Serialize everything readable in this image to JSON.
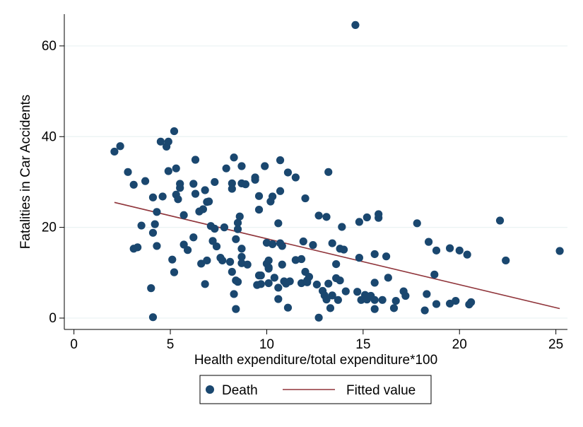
{
  "chart_data": {
    "type": "scatter",
    "xlabel": "Health expenditure/total expenditure*100",
    "ylabel": "Fatalities in Car Accidents",
    "xlim": [
      -0.5,
      25.6
    ],
    "ylim": [
      -2.5,
      67
    ],
    "x_ticks": [
      0,
      5,
      10,
      15,
      20,
      25
    ],
    "y_ticks": [
      0,
      20,
      40,
      60
    ],
    "grid": "horizontal",
    "legend": {
      "position": "bottom",
      "items": [
        "Death",
        "Fitted value"
      ]
    },
    "colors": {
      "points": "#1a476f",
      "fit": "#90353b"
    },
    "series": [
      {
        "name": "Death",
        "kind": "scatter",
        "points": [
          [
            2.1,
            36.7
          ],
          [
            2.4,
            37.9
          ],
          [
            2.8,
            32.2
          ],
          [
            3.1,
            29.4
          ],
          [
            3.1,
            15.3
          ],
          [
            3.3,
            15.6
          ],
          [
            3.5,
            20.4
          ],
          [
            3.7,
            30.2
          ],
          [
            4.0,
            6.6
          ],
          [
            4.1,
            26.6
          ],
          [
            4.1,
            18.8
          ],
          [
            4.1,
            0.2
          ],
          [
            4.2,
            20.7
          ],
          [
            4.3,
            23.4
          ],
          [
            4.3,
            15.9
          ],
          [
            4.5,
            38.9
          ],
          [
            4.6,
            26.8
          ],
          [
            4.8,
            37.8
          ],
          [
            4.9,
            32.4
          ],
          [
            4.9,
            38.9
          ],
          [
            5.1,
            12.9
          ],
          [
            5.2,
            41.2
          ],
          [
            5.2,
            10.1
          ],
          [
            5.3,
            33.0
          ],
          [
            5.3,
            27.2
          ],
          [
            5.4,
            26.2
          ],
          [
            5.5,
            28.7
          ],
          [
            5.5,
            29.6
          ],
          [
            5.7,
            22.7
          ],
          [
            5.7,
            16.2
          ],
          [
            5.9,
            15.0
          ],
          [
            6.2,
            17.8
          ],
          [
            6.2,
            29.6
          ],
          [
            6.3,
            34.9
          ],
          [
            6.3,
            27.4
          ],
          [
            6.5,
            23.5
          ],
          [
            6.6,
            12.0
          ],
          [
            6.7,
            24.0
          ],
          [
            6.8,
            28.2
          ],
          [
            6.8,
            7.5
          ],
          [
            6.9,
            25.6
          ],
          [
            6.9,
            12.7
          ],
          [
            7.0,
            25.7
          ],
          [
            7.1,
            20.3
          ],
          [
            7.2,
            17.0
          ],
          [
            7.3,
            30.0
          ],
          [
            7.3,
            19.7
          ],
          [
            7.4,
            15.8
          ],
          [
            7.6,
            13.3
          ],
          [
            7.7,
            12.7
          ],
          [
            7.8,
            20.0
          ],
          [
            7.9,
            33.0
          ],
          [
            8.1,
            12.4
          ],
          [
            8.2,
            10.2
          ],
          [
            8.2,
            28.5
          ],
          [
            8.2,
            29.7
          ],
          [
            8.3,
            35.4
          ],
          [
            8.3,
            5.3
          ],
          [
            8.4,
            17.4
          ],
          [
            8.4,
            8.3
          ],
          [
            8.4,
            2.0
          ],
          [
            8.5,
            8.0
          ],
          [
            8.5,
            21.0
          ],
          [
            8.5,
            19.6
          ],
          [
            8.6,
            22.4
          ],
          [
            8.7,
            13.5
          ],
          [
            8.7,
            12.1
          ],
          [
            8.7,
            15.3
          ],
          [
            8.7,
            29.7
          ],
          [
            8.7,
            33.5
          ],
          [
            8.9,
            29.5
          ],
          [
            9.0,
            11.8
          ],
          [
            9.4,
            30.5
          ],
          [
            9.4,
            31.0
          ],
          [
            9.5,
            7.3
          ],
          [
            9.6,
            9.4
          ],
          [
            9.6,
            23.9
          ],
          [
            9.6,
            26.9
          ],
          [
            9.7,
            9.4
          ],
          [
            9.7,
            7.5
          ],
          [
            9.9,
            33.5
          ],
          [
            10.0,
            16.6
          ],
          [
            10.0,
            12.0
          ],
          [
            10.1,
            11.2
          ],
          [
            10.1,
            7.7
          ],
          [
            10.1,
            12.7
          ],
          [
            10.1,
            10.9
          ],
          [
            10.2,
            25.7
          ],
          [
            10.3,
            16.3
          ],
          [
            10.3,
            26.8
          ],
          [
            10.4,
            8.9
          ],
          [
            10.6,
            4.2
          ],
          [
            10.6,
            6.7
          ],
          [
            10.6,
            20.9
          ],
          [
            10.7,
            16.5
          ],
          [
            10.7,
            28.0
          ],
          [
            10.7,
            34.8
          ],
          [
            10.8,
            11.8
          ],
          [
            10.8,
            15.9
          ],
          [
            10.9,
            8.1
          ],
          [
            11.0,
            7.6
          ],
          [
            11.1,
            32.1
          ],
          [
            11.1,
            2.3
          ],
          [
            11.2,
            8.1
          ],
          [
            11.5,
            31.0
          ],
          [
            11.5,
            12.8
          ],
          [
            11.8,
            7.7
          ],
          [
            11.8,
            13.0
          ],
          [
            11.9,
            16.9
          ],
          [
            12.0,
            26.4
          ],
          [
            12.0,
            10.2
          ],
          [
            12.1,
            8.3
          ],
          [
            12.1,
            7.9
          ],
          [
            12.2,
            9.1
          ],
          [
            12.4,
            16.1
          ],
          [
            12.6,
            7.4
          ],
          [
            12.7,
            0.1
          ],
          [
            12.7,
            22.6
          ],
          [
            12.9,
            6.0
          ],
          [
            13.0,
            5.0
          ],
          [
            13.1,
            4.1
          ],
          [
            13.1,
            22.3
          ],
          [
            13.2,
            7.6
          ],
          [
            13.2,
            32.2
          ],
          [
            13.3,
            2.2
          ],
          [
            13.4,
            16.5
          ],
          [
            13.4,
            5.0
          ],
          [
            13.6,
            11.9
          ],
          [
            13.6,
            8.8
          ],
          [
            13.7,
            4.0
          ],
          [
            13.8,
            15.3
          ],
          [
            13.8,
            8.3
          ],
          [
            13.9,
            20.1
          ],
          [
            14.0,
            15.1
          ],
          [
            14.1,
            5.9
          ],
          [
            14.6,
            64.6
          ],
          [
            14.7,
            5.8
          ],
          [
            14.8,
            13.3
          ],
          [
            14.8,
            21.2
          ],
          [
            14.9,
            4.0
          ],
          [
            15.1,
            5.1
          ],
          [
            15.2,
            22.2
          ],
          [
            15.2,
            4.1
          ],
          [
            15.4,
            4.9
          ],
          [
            15.6,
            2.0
          ],
          [
            15.6,
            4.0
          ],
          [
            15.6,
            14.1
          ],
          [
            15.6,
            7.8
          ],
          [
            15.8,
            22.1
          ],
          [
            15.8,
            22.9
          ],
          [
            16.0,
            4.0
          ],
          [
            16.2,
            13.6
          ],
          [
            16.3,
            8.9
          ],
          [
            16.6,
            2.2
          ],
          [
            16.7,
            3.8
          ],
          [
            17.1,
            5.9
          ],
          [
            17.2,
            4.9
          ],
          [
            17.8,
            20.9
          ],
          [
            18.2,
            1.7
          ],
          [
            18.3,
            5.3
          ],
          [
            18.4,
            16.8
          ],
          [
            18.7,
            9.6
          ],
          [
            18.8,
            14.9
          ],
          [
            18.8,
            3.1
          ],
          [
            19.5,
            15.4
          ],
          [
            19.5,
            3.2
          ],
          [
            19.8,
            3.8
          ],
          [
            20.0,
            14.9
          ],
          [
            20.4,
            14.0
          ],
          [
            20.5,
            3.0
          ],
          [
            20.6,
            3.5
          ],
          [
            22.1,
            21.5
          ],
          [
            22.4,
            12.7
          ],
          [
            25.2,
            14.8
          ]
        ]
      },
      {
        "name": "Fitted value",
        "kind": "line",
        "points": [
          [
            2.1,
            25.5
          ],
          [
            25.2,
            2.1
          ]
        ]
      }
    ]
  }
}
